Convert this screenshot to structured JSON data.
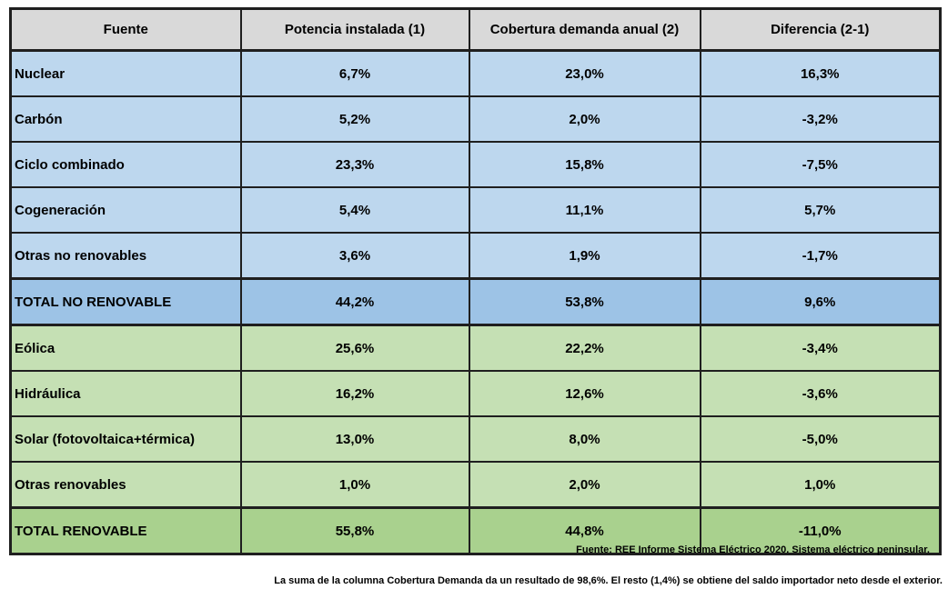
{
  "table": {
    "columns": [
      "Fuente",
      "Potencia instalada (1)",
      "Cobertura demanda anual (2)",
      "Diferencia (2-1)"
    ],
    "rows": [
      {
        "label": "Nuclear",
        "values": [
          "6,7%",
          "23,0%",
          "16,3%"
        ],
        "group": "no-renovable"
      },
      {
        "label": "Carbón",
        "values": [
          "5,2%",
          "2,0%",
          "-3,2%"
        ],
        "group": "no-renovable"
      },
      {
        "label": "Ciclo combinado",
        "values": [
          "23,3%",
          "15,8%",
          "-7,5%"
        ],
        "group": "no-renovable"
      },
      {
        "label": "Cogeneración",
        "values": [
          "5,4%",
          "11,1%",
          "5,7%"
        ],
        "group": "no-renovable"
      },
      {
        "label": "Otras no renovables",
        "values": [
          "3,6%",
          "1,9%",
          "-1,7%"
        ],
        "group": "no-renovable"
      },
      {
        "label": "TOTAL NO RENOVABLE",
        "values": [
          "44,2%",
          "53,8%",
          "9,6%"
        ],
        "group": "total-no-renovable"
      },
      {
        "label": "Eólica",
        "values": [
          "25,6%",
          "22,2%",
          "-3,4%"
        ],
        "group": "renovable"
      },
      {
        "label": "Hidráulica",
        "values": [
          "16,2%",
          "12,6%",
          "-3,6%"
        ],
        "group": "renovable"
      },
      {
        "label": "Solar (fotovoltaica+térmica)",
        "values": [
          "13,0%",
          "8,0%",
          "-5,0%"
        ],
        "group": "renovable"
      },
      {
        "label": "Otras renovables",
        "values": [
          "1,0%",
          "2,0%",
          "1,0%"
        ],
        "group": "renovable"
      },
      {
        "label": "TOTAL RENOVABLE",
        "values": [
          "55,8%",
          "44,8%",
          "-11,0%"
        ],
        "group": "total-renovable"
      }
    ]
  },
  "footnotes": {
    "source": "Fuente: REE Informe Sistema Eléctrico 2020. Sistema eléctrico peninsular.",
    "note": "La suma de la columna Cobertura Demanda da un resultado de 98,6%. El resto (1,4%) se obtiene del saldo importador neto desde el exterior."
  },
  "colors": {
    "header_bg": "#d9d9d9",
    "no_renovable_bg": "#bdd7ee",
    "total_no_renovable_bg": "#9dc3e6",
    "renovable_bg": "#c5e0b4",
    "total_renovable_bg": "#a9d18e",
    "border": "#1f1f1f",
    "text": "#000000"
  },
  "chart_data": {
    "type": "table",
    "columns": [
      "Fuente",
      "Potencia instalada (1)",
      "Cobertura demanda anual (2)",
      "Diferencia (2-1)"
    ],
    "rows": [
      [
        "Nuclear",
        6.7,
        23.0,
        16.3
      ],
      [
        "Carbón",
        5.2,
        2.0,
        -3.2
      ],
      [
        "Ciclo combinado",
        23.3,
        15.8,
        -7.5
      ],
      [
        "Cogeneración",
        5.4,
        11.1,
        5.7
      ],
      [
        "Otras no renovables",
        3.6,
        1.9,
        -1.7
      ],
      [
        "TOTAL NO RENOVABLE",
        44.2,
        53.8,
        9.6
      ],
      [
        "Eólica",
        25.6,
        22.2,
        -3.4
      ],
      [
        "Hidráulica",
        16.2,
        12.6,
        -3.6
      ],
      [
        "Solar (fotovoltaica+térmica)",
        13.0,
        8.0,
        -5.0
      ],
      [
        "Otras renovables",
        1.0,
        2.0,
        1.0
      ],
      [
        "TOTAL RENOVABLE",
        55.8,
        44.8,
        -11.0
      ]
    ],
    "units": "%",
    "notes": "Values are percentages; comma used as decimal separator in display."
  }
}
